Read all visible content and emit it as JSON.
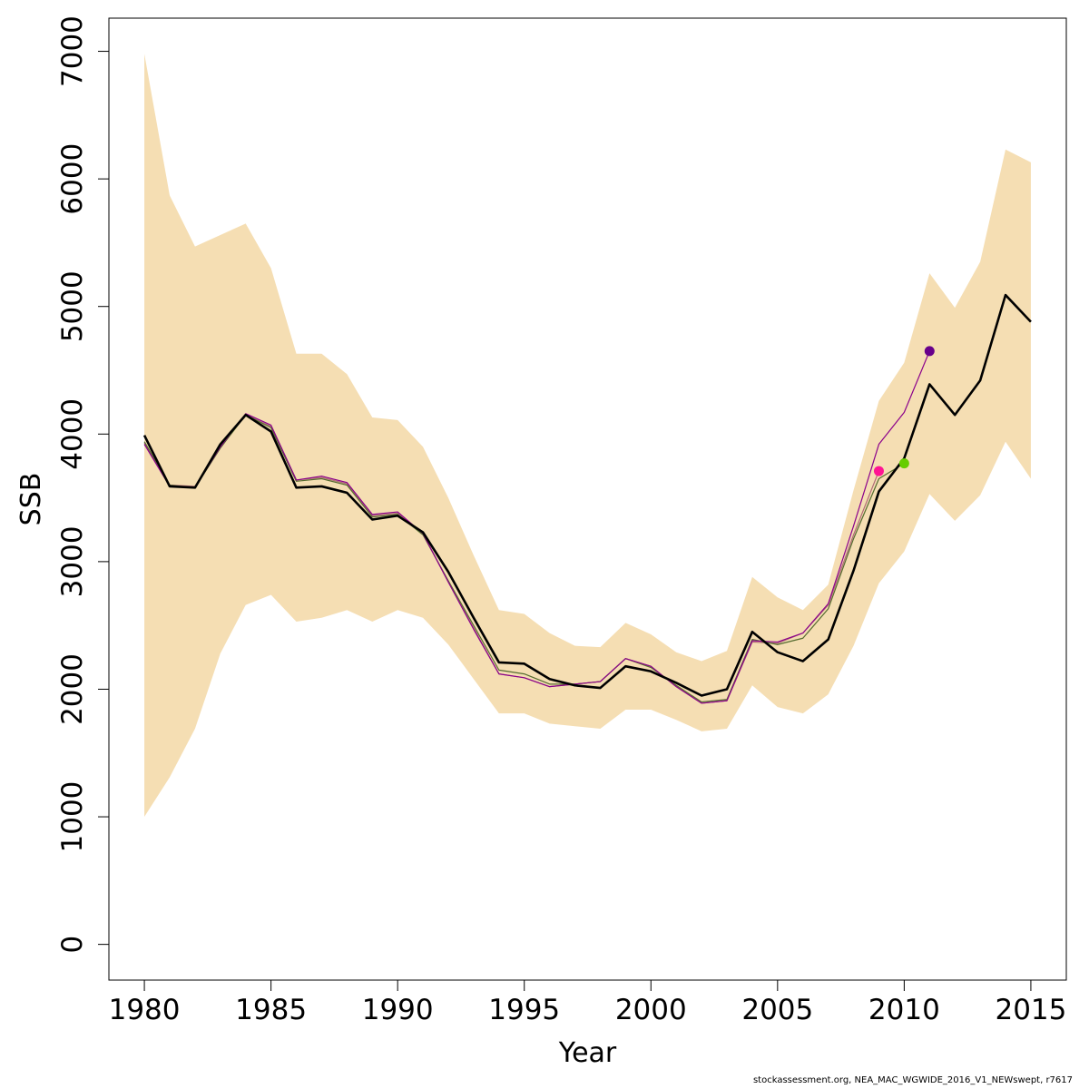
{
  "chart_data": {
    "type": "line",
    "xlabel": "Year",
    "ylabel": "SSB",
    "xlim": [
      1978.6,
      2016.4
    ],
    "ylim": [
      -280,
      7260
    ],
    "x_ticks": [
      1980,
      1985,
      1990,
      1995,
      2000,
      2005,
      2010,
      2015
    ],
    "y_ticks": [
      0,
      1000,
      2000,
      3000,
      4000,
      5000,
      6000,
      7000
    ],
    "grid": false,
    "band": {
      "color": "#F5DEB3",
      "years": [
        1980,
        1981,
        1982,
        1983,
        1984,
        1985,
        1986,
        1987,
        1988,
        1989,
        1990,
        1991,
        1992,
        1993,
        1994,
        1995,
        1996,
        1997,
        1998,
        1999,
        2000,
        2001,
        2002,
        2003,
        2004,
        2005,
        2006,
        2007,
        2008,
        2009,
        2010,
        2011,
        2012,
        2013,
        2014,
        2015
      ],
      "upper": [
        6980,
        5870,
        5470,
        5560,
        5650,
        5300,
        4630,
        4630,
        4470,
        4130,
        4110,
        3900,
        3500,
        3050,
        2620,
        2590,
        2440,
        2340,
        2330,
        2520,
        2430,
        2290,
        2220,
        2300,
        2880,
        2720,
        2620,
        2820,
        3560,
        4260,
        4560,
        5260,
        4990,
        5350,
        6230,
        6130
      ],
      "lower": [
        1000,
        1310,
        1690,
        2280,
        2660,
        2740,
        2530,
        2560,
        2620,
        2530,
        2620,
        2560,
        2350,
        2080,
        1810,
        1810,
        1730,
        1710,
        1690,
        1840,
        1840,
        1760,
        1670,
        1690,
        2030,
        1860,
        1810,
        1960,
        2340,
        2830,
        3080,
        3530,
        3320,
        3520,
        3940,
        3650
      ]
    },
    "series": [
      {
        "color": "#B06B75",
        "width": 1.2,
        "x": [
          1980,
          1981,
          1982,
          1983,
          1984,
          1985,
          1986,
          1987,
          1988,
          1989,
          1990,
          1991,
          1992,
          1993,
          1994,
          1995,
          1996,
          1997,
          1998,
          1999,
          2000,
          2001,
          2002,
          2003,
          2004,
          2005,
          2006,
          2007,
          2008,
          2009
        ],
        "y": [
          3930,
          3600,
          3590,
          3900,
          4150,
          4060,
          3640,
          3660,
          3610,
          3360,
          3380,
          3220,
          2840,
          2480,
          2120,
          2090,
          2020,
          2040,
          2060,
          2240,
          2180,
          2020,
          1890,
          1910,
          2370,
          2360,
          2440,
          2660,
          3210,
          3710
        ]
      },
      {
        "color": "#556B2F",
        "width": 1.2,
        "x": [
          1980,
          1981,
          1982,
          1983,
          1984,
          1985,
          1986,
          1987,
          1988,
          1989,
          1990,
          1991,
          1992,
          1993,
          1994,
          1995,
          1996,
          1997,
          1998,
          1999,
          2000,
          2001,
          2002,
          2003,
          2004,
          2005,
          2006,
          2007,
          2008,
          2009,
          2010
        ],
        "y": [
          3940,
          3600,
          3580,
          3890,
          4150,
          4050,
          3630,
          3650,
          3600,
          3350,
          3370,
          3210,
          2850,
          2500,
          2150,
          2120,
          2040,
          2040,
          2060,
          2240,
          2170,
          2030,
          1900,
          1920,
          2390,
          2350,
          2400,
          2630,
          3180,
          3650,
          3770
        ]
      },
      {
        "color": "#8B008B",
        "width": 1.2,
        "x": [
          1980,
          1981,
          1982,
          1983,
          1984,
          1985,
          1986,
          1987,
          1988,
          1989,
          1990,
          1991,
          1992,
          1993,
          1994,
          1995,
          1996,
          1997,
          1998,
          1999,
          2000,
          2001,
          2002,
          2003,
          2004,
          2005,
          2006,
          2007,
          2008,
          2009,
          2010,
          2011
        ],
        "y": [
          3920,
          3590,
          3580,
          3900,
          4160,
          4070,
          3640,
          3670,
          3620,
          3370,
          3390,
          3220,
          2840,
          2470,
          2120,
          2090,
          2020,
          2040,
          2060,
          2240,
          2180,
          2020,
          1890,
          1910,
          2380,
          2370,
          2440,
          2670,
          3280,
          3920,
          4170,
          4650
        ]
      },
      {
        "color": "#000000",
        "width": 2.6,
        "x": [
          1980,
          1981,
          1982,
          1983,
          1984,
          1985,
          1986,
          1987,
          1988,
          1989,
          1990,
          1991,
          1992,
          1993,
          1994,
          1995,
          1996,
          1997,
          1998,
          1999,
          2000,
          2001,
          2002,
          2003,
          2004,
          2005,
          2006,
          2007,
          2008,
          2009,
          2010,
          2011,
          2012,
          2013,
          2014,
          2015
        ],
        "y": [
          3990,
          3590,
          3580,
          3920,
          4150,
          4020,
          3580,
          3590,
          3540,
          3330,
          3360,
          3230,
          2920,
          2560,
          2210,
          2200,
          2080,
          2030,
          2010,
          2180,
          2140,
          2050,
          1950,
          2000,
          2450,
          2290,
          2220,
          2390,
          2930,
          3550,
          3810,
          4390,
          4150,
          4420,
          5090,
          4880
        ]
      }
    ],
    "points": [
      {
        "x": 2009,
        "y": 3710,
        "color": "#FF1493"
      },
      {
        "x": 2010,
        "y": 3770,
        "color": "#66CD00"
      },
      {
        "x": 2011,
        "y": 4650,
        "color": "#68008B"
      }
    ]
  },
  "credit": "stockassessment.org, NEA_MAC_WGWIDE_2016_V1_NEWswept, r7617"
}
